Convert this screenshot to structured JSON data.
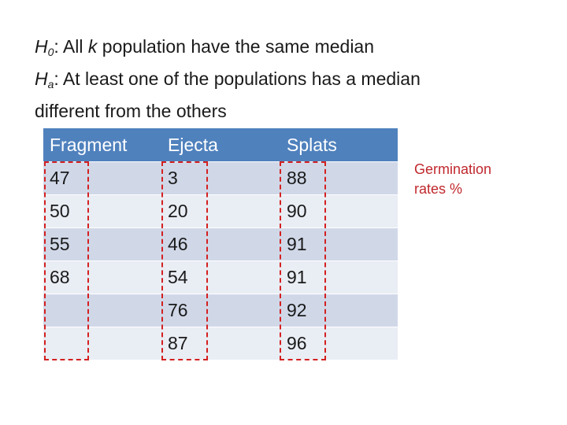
{
  "hypotheses": {
    "h0": {
      "symbol": "H",
      "subscript": "0",
      "text_pre": ":  All ",
      "k": "k",
      "text_post": " population have the same median"
    },
    "ha": {
      "symbol": "H",
      "subscript": "a",
      "text": ":  At least one of the populations has a median"
    },
    "ha_cont": "different from the others"
  },
  "table": {
    "headers": [
      "Fragment",
      "Ejecta",
      "Splats"
    ],
    "rows": [
      [
        "47",
        "3",
        "88"
      ],
      [
        "50",
        "20",
        "90"
      ],
      [
        "55",
        "46",
        "91"
      ],
      [
        "68",
        "54",
        "91"
      ],
      [
        "",
        "76",
        "92"
      ],
      [
        "",
        "87",
        "96"
      ]
    ]
  },
  "note": {
    "line1": "Germination",
    "line2": "rates %"
  },
  "colors": {
    "header": "#4f81bd",
    "row_odd": "#d0d8e8",
    "row_even": "#e9edf4",
    "dash": "#d42020",
    "note": "#c0282d"
  }
}
